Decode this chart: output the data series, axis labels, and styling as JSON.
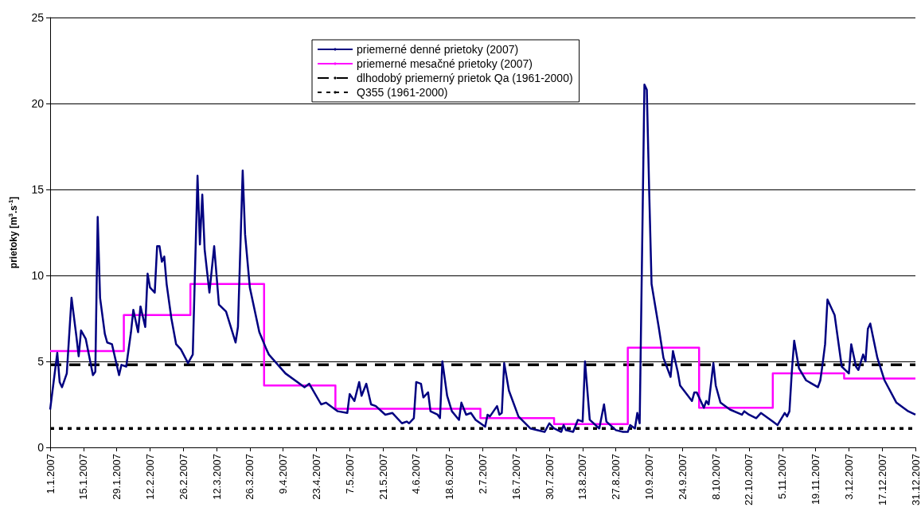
{
  "chart_data": {
    "type": "line",
    "ylabel": "prietoky [m$^{3}$.s$^{-1}$]",
    "xlim": [
      "2007-01-01",
      "2007-12-31"
    ],
    "xticks": [
      {
        "value": "2007-01-01",
        "label": "1.1.2007"
      },
      {
        "value": "2007-01-15",
        "label": "15.1.2007"
      },
      {
        "value": "2007-01-29",
        "label": "29.1.2007"
      },
      {
        "value": "2007-02-12",
        "label": "12.2.2007"
      },
      {
        "value": "2007-02-26",
        "label": "26.2.2007"
      },
      {
        "value": "2007-03-12",
        "label": "12.3.2007"
      },
      {
        "value": "2007-03-26",
        "label": "26.3.2007"
      },
      {
        "value": "2007-04-09",
        "label": "9.4.2007"
      },
      {
        "value": "2007-04-23",
        "label": "23.4.2007"
      },
      {
        "value": "2007-05-07",
        "label": "7.5.2007"
      },
      {
        "value": "2007-05-21",
        "label": "21.5.2007"
      },
      {
        "value": "2007-06-04",
        "label": "4.6.2007"
      },
      {
        "value": "2007-06-18",
        "label": "18.6.2007"
      },
      {
        "value": "2007-07-02",
        "label": "2.7.2007"
      },
      {
        "value": "2007-07-16",
        "label": "16.7.2007"
      },
      {
        "value": "2007-07-30",
        "label": "30.7.2007"
      },
      {
        "value": "2007-08-13",
        "label": "13.8.2007"
      },
      {
        "value": "2007-08-27",
        "label": "27.8.2007"
      },
      {
        "value": "2007-09-10",
        "label": "10.9.2007"
      },
      {
        "value": "2007-09-24",
        "label": "24.9.2007"
      },
      {
        "value": "2007-10-08",
        "label": "8.10.2007"
      },
      {
        "value": "2007-10-22",
        "label": "22.10.2007"
      },
      {
        "value": "2007-11-05",
        "label": "5.11.2007"
      },
      {
        "value": "2007-11-19",
        "label": "19.11.2007"
      },
      {
        "value": "2007-12-03",
        "label": "3.12.2007"
      },
      {
        "value": "2007-12-17",
        "label": "17.12.2007"
      },
      {
        "value": "2007-12-31",
        "label": "31.12.2007"
      }
    ],
    "ylim": [
      0,
      25
    ],
    "yticks": [
      0,
      5,
      10,
      15,
      20,
      25
    ],
    "grid": "y",
    "legend": "top",
    "marker": "none",
    "series": [
      {
        "name": "priemerné denné prietoky (2007)",
        "color": "#000080",
        "x": [
          "2007-01-01",
          "2007-01-04",
          "2007-01-05",
          "2007-01-06",
          "2007-01-08",
          "2007-01-10",
          "2007-01-12",
          "2007-01-13",
          "2007-01-14",
          "2007-01-16",
          "2007-01-19",
          "2007-01-20",
          "2007-01-21",
          "2007-01-22",
          "2007-01-24",
          "2007-01-25",
          "2007-01-27",
          "2007-01-30",
          "2007-01-31",
          "2007-02-02",
          "2007-02-04",
          "2007-02-05",
          "2007-02-07",
          "2007-02-08",
          "2007-02-10",
          "2007-02-11",
          "2007-02-12",
          "2007-02-14",
          "2007-02-15",
          "2007-02-16",
          "2007-02-17",
          "2007-02-18",
          "2007-02-19",
          "2007-02-21",
          "2007-02-23",
          "2007-02-25",
          "2007-02-28",
          "2007-03-02",
          "2007-03-04",
          "2007-03-05",
          "2007-03-06",
          "2007-03-07",
          "2007-03-09",
          "2007-03-11",
          "2007-03-13",
          "2007-03-16",
          "2007-03-20",
          "2007-03-21",
          "2007-03-23",
          "2007-03-24",
          "2007-03-26",
          "2007-03-30",
          "2007-04-02",
          "2007-04-03",
          "2007-04-10",
          "2007-04-17",
          "2007-04-18",
          "2007-04-20",
          "2007-04-25",
          "2007-04-27",
          "2007-05-02",
          "2007-05-06",
          "2007-05-07",
          "2007-05-09",
          "2007-05-11",
          "2007-05-12",
          "2007-05-14",
          "2007-05-16",
          "2007-05-18",
          "2007-05-22",
          "2007-05-25",
          "2007-05-29",
          "2007-05-31",
          "2007-06-01",
          "2007-06-03",
          "2007-06-04",
          "2007-06-06",
          "2007-06-07",
          "2007-06-09",
          "2007-06-10",
          "2007-06-13",
          "2007-06-14",
          "2007-06-15",
          "2007-06-17",
          "2007-06-19",
          "2007-06-22",
          "2007-06-23",
          "2007-06-25",
          "2007-06-27",
          "2007-06-29",
          "2007-07-03",
          "2007-07-04",
          "2007-07-05",
          "2007-07-08",
          "2007-07-09",
          "2007-07-10",
          "2007-07-11",
          "2007-07-13",
          "2007-07-17",
          "2007-07-22",
          "2007-07-28",
          "2007-07-30",
          "2007-08-01",
          "2007-08-04",
          "2007-08-05",
          "2007-08-06",
          "2007-08-09",
          "2007-08-11",
          "2007-08-13",
          "2007-08-14",
          "2007-08-16",
          "2007-08-20",
          "2007-08-22",
          "2007-08-23",
          "2007-08-27",
          "2007-08-30",
          "2007-09-01",
          "2007-09-02",
          "2007-09-04",
          "2007-09-05",
          "2007-09-06",
          "2007-09-08",
          "2007-09-09",
          "2007-09-10",
          "2007-09-11",
          "2007-09-14",
          "2007-09-16",
          "2007-09-19",
          "2007-09-20",
          "2007-09-22",
          "2007-09-23",
          "2007-09-28",
          "2007-09-29",
          "2007-09-30",
          "2007-10-02",
          "2007-10-03",
          "2007-10-04",
          "2007-10-05",
          "2007-10-07",
          "2007-10-08",
          "2007-10-10",
          "2007-10-14",
          "2007-10-19",
          "2007-10-20",
          "2007-10-22",
          "2007-10-25",
          "2007-10-27",
          "2007-11-01",
          "2007-11-03",
          "2007-11-06",
          "2007-11-07",
          "2007-11-08",
          "2007-11-09",
          "2007-11-10",
          "2007-11-12",
          "2007-11-15",
          "2007-11-20",
          "2007-11-21",
          "2007-11-22",
          "2007-11-23",
          "2007-11-24",
          "2007-11-27",
          "2007-11-30",
          "2007-12-03",
          "2007-12-04",
          "2007-12-06",
          "2007-12-07",
          "2007-12-09",
          "2007-12-10",
          "2007-12-11",
          "2007-12-12",
          "2007-12-15",
          "2007-12-18",
          "2007-12-23",
          "2007-12-28",
          "2007-12-31"
        ],
        "values": [
          2.2,
          5.5,
          3.8,
          3.5,
          4.3,
          8.7,
          6.5,
          5.3,
          6.8,
          6.3,
          4.2,
          4.4,
          13.4,
          8.7,
          6.6,
          6.1,
          6.0,
          4.2,
          4.8,
          4.7,
          6.7,
          8.0,
          6.7,
          8.2,
          7.0,
          10.1,
          9.3,
          9.0,
          11.7,
          11.7,
          10.8,
          11.1,
          9.5,
          7.5,
          6.0,
          5.7,
          4.9,
          5.4,
          15.8,
          11.8,
          14.7,
          11.5,
          9.0,
          11.7,
          8.3,
          7.9,
          6.1,
          7.0,
          16.1,
          12.4,
          9.3,
          6.7,
          5.7,
          5.4,
          4.3,
          3.6,
          3.5,
          3.7,
          2.5,
          2.6,
          2.1,
          2.0,
          3.1,
          2.7,
          3.8,
          3.0,
          3.7,
          2.5,
          2.4,
          1.9,
          2.0,
          1.4,
          1.5,
          1.4,
          1.7,
          3.8,
          3.7,
          2.9,
          3.2,
          2.1,
          1.9,
          1.7,
          5.0,
          3.0,
          2.1,
          1.6,
          2.6,
          1.9,
          2.0,
          1.6,
          1.2,
          1.9,
          1.8,
          2.4,
          1.9,
          2.0,
          4.9,
          3.3,
          1.8,
          1.1,
          0.9,
          1.4,
          1.1,
          0.9,
          1.3,
          1.0,
          0.9,
          1.6,
          1.5,
          5.0,
          1.6,
          1.1,
          2.5,
          1.5,
          1.0,
          0.9,
          0.9,
          1.3,
          1.1,
          2.0,
          1.4,
          21.1,
          20.8,
          14.9,
          9.5,
          7.0,
          5.2,
          4.1,
          5.6,
          4.4,
          3.6,
          2.7,
          3.2,
          3.2,
          2.6,
          2.3,
          2.7,
          2.5,
          4.9,
          3.6,
          2.6,
          2.2,
          1.9,
          2.1,
          1.9,
          1.7,
          2.0,
          1.5,
          1.3,
          2.0,
          1.8,
          2.1,
          4.4,
          6.2,
          4.6,
          3.9,
          3.5,
          3.9,
          4.9,
          6.0,
          8.6,
          7.7,
          4.7,
          4.3,
          6.0,
          4.7,
          4.5,
          5.4,
          5.0,
          6.9,
          7.2,
          5.2,
          3.9,
          2.6,
          2.1,
          1.9
        ]
      },
      {
        "name": "priemerné mesačné prietoky (2007)",
        "type": "step",
        "color": "#ff00ff",
        "x": [
          "2007-01-01",
          "2007-02-01",
          "2007-03-01",
          "2007-04-01",
          "2007-05-01",
          "2007-06-01",
          "2007-07-01",
          "2007-08-01",
          "2007-09-01",
          "2007-10-01",
          "2007-11-01",
          "2007-12-01",
          "2007-12-31"
        ],
        "values": [
          5.6,
          7.7,
          9.5,
          3.6,
          2.25,
          2.25,
          1.7,
          1.35,
          5.8,
          2.3,
          4.3,
          4.0,
          4.0
        ]
      },
      {
        "name": "dlhodobý priemerný prietok Qa (1961-2000)",
        "line_style": "dashed",
        "color": "#000000",
        "x": [
          "2007-01-01",
          "2007-12-31"
        ],
        "values": [
          4.8,
          4.8
        ]
      },
      {
        "name": "Q355 (1961-2000)",
        "line_style": "dotted",
        "color": "#000000",
        "x": [
          "2007-01-01",
          "2007-12-31"
        ],
        "values": [
          1.1,
          1.1
        ]
      }
    ]
  }
}
